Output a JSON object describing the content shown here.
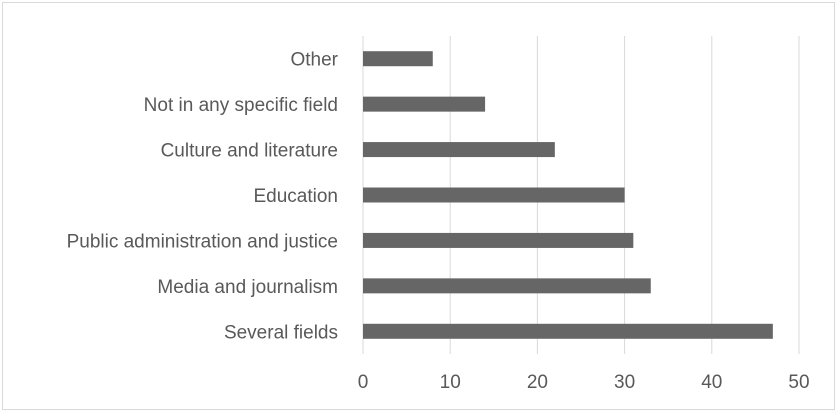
{
  "chart_data": {
    "type": "bar",
    "orientation": "horizontal",
    "categories": [
      "Several fields",
      "Media and journalism",
      "Public administration and justice",
      "Education",
      "Culture and literature",
      "Not in any specific field",
      "Other"
    ],
    "values": [
      47,
      33,
      31,
      30,
      22,
      14,
      8
    ],
    "xlim": [
      0,
      50
    ],
    "xticks": [
      "0",
      "10",
      "20",
      "30",
      "40",
      "50"
    ],
    "grid": "vertical",
    "bar_color": "#666666",
    "grid_color": "#d9d9d9",
    "title": "",
    "xlabel": "",
    "ylabel": ""
  }
}
